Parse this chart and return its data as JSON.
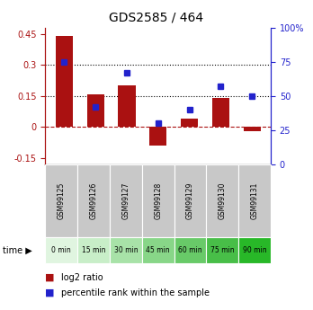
{
  "title": "GDS2585 / 464",
  "samples": [
    "GSM99125",
    "GSM99126",
    "GSM99127",
    "GSM99128",
    "GSM99129",
    "GSM99130",
    "GSM99131"
  ],
  "time_labels": [
    "0 min",
    "15 min",
    "30 min",
    "45 min",
    "60 min",
    "75 min",
    "90 min"
  ],
  "log2_ratio": [
    0.44,
    0.16,
    0.2,
    -0.09,
    0.04,
    0.14,
    -0.02
  ],
  "percentile_rank": [
    75,
    42,
    67,
    30,
    40,
    57,
    50
  ],
  "bar_color": "#aa1111",
  "dot_color": "#2222cc",
  "ylim_left": [
    -0.18,
    0.48
  ],
  "ylim_right": [
    0,
    100
  ],
  "yticks_left": [
    -0.15,
    0,
    0.15,
    0.3,
    0.45
  ],
  "yticks_right": [
    0,
    25,
    50,
    75,
    100
  ],
  "hlines": [
    0.15,
    0.3
  ],
  "gsm_bg_color": "#c8c8c8",
  "time_row_colors": [
    "#e0f5e0",
    "#c8eec8",
    "#a8e2a8",
    "#88d688",
    "#68ca68",
    "#48be48",
    "#28b828"
  ]
}
